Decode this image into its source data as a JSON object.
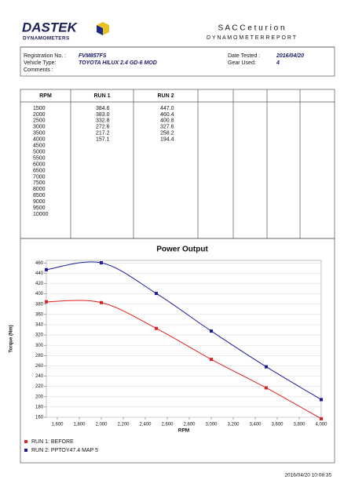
{
  "header": {
    "logo": "DASTEK",
    "logo_sub": "DYNAMOMETERS",
    "title": "S A C  C e t u r i o n",
    "subtitle": "D Y N A M O M E T E R   R E P O R T"
  },
  "info": {
    "registration_label": "Registration No. :",
    "registration": "FVM857FS",
    "vehicle_label": "Vehicle Type:",
    "vehicle": "TOYOTA HILUX 2.4 GD-6 MOD",
    "comments_label": "Comments :",
    "date_label": "Date Tested :",
    "date": "2016/04/20",
    "gear_label": "Gear Used:",
    "gear": "4"
  },
  "table": {
    "headers": [
      "RPM",
      "RUN 1",
      "RUN 2"
    ],
    "columns": [
      [
        "1500",
        "2000",
        "2500",
        "3000",
        "3500",
        "4000",
        "4500",
        "5000",
        "5500",
        "6000",
        "6500",
        "7000",
        "7500",
        "8000",
        "8500",
        "9000",
        "9500",
        "10000"
      ],
      [
        "384.6",
        "383.0",
        "332.8",
        "272.6",
        "217.2",
        "157.1"
      ],
      [
        "447.0",
        "460.4",
        "400.8",
        "327.6",
        "258.2",
        "194.4"
      ]
    ]
  },
  "chart_data": {
    "type": "line",
    "title": "Power Output",
    "x_label": "RPM",
    "y_label": "Torque (Nm)",
    "x": [
      1500,
      2000,
      2500,
      3000,
      3500,
      4000
    ],
    "series": [
      {
        "name": "RUN 1: BEFORE",
        "color": "#e02020",
        "values": [
          384.6,
          383.0,
          332.8,
          272.6,
          217.2,
          157.1
        ]
      },
      {
        "name": "RUN 2: PPTOY47.4 MAP 5",
        "color": "#1a1a9a",
        "values": [
          447.0,
          460.4,
          400.8,
          327.6,
          258.2,
          194.4
        ]
      }
    ],
    "xlim": [
      1500,
      4000
    ],
    "ylim": [
      160,
      465
    ],
    "xticks": [
      {
        "value": 1600,
        "label": "1,600"
      },
      {
        "value": 1800,
        "label": "1,800"
      },
      {
        "value": 2000,
        "label": "2,000"
      },
      {
        "value": 2200,
        "label": "2,200"
      },
      {
        "value": 2400,
        "label": "2,400"
      },
      {
        "value": 2600,
        "label": "2,600"
      },
      {
        "value": 2800,
        "label": "2,800"
      },
      {
        "value": 3000,
        "label": "3,000"
      },
      {
        "value": 3200,
        "label": "3,200"
      },
      {
        "value": 3400,
        "label": "3,400"
      },
      {
        "value": 3600,
        "label": "3,600"
      },
      {
        "value": 3800,
        "label": "3,800"
      },
      {
        "value": 4000,
        "label": "4,000"
      }
    ],
    "yticks": [
      160,
      180,
      200,
      220,
      240,
      260,
      280,
      300,
      320,
      340,
      360,
      380,
      400,
      420,
      440,
      460
    ],
    "grid": true,
    "legend": "bottom-left"
  },
  "footer": {
    "timestamp": "2016/04/20 10:08:35"
  }
}
